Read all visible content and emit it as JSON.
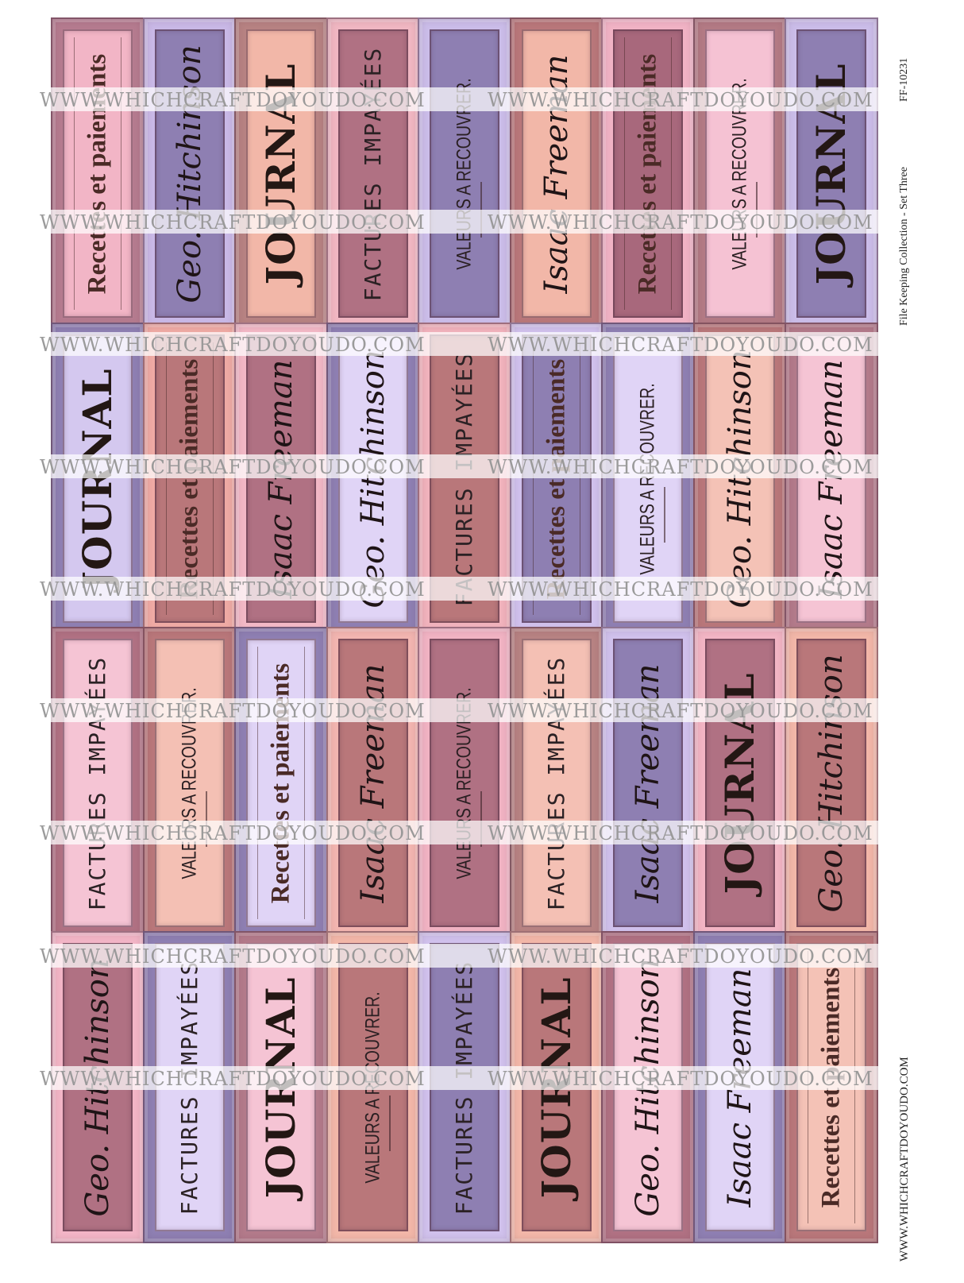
{
  "watermark": "WWW.WHICHCRAFTDOYOUDO.COM",
  "caption": "File Keeping Collection - Set Three",
  "code": "FF-10231",
  "footer_url": "WWW.WHICHCRAFTDOYOUDO.COM",
  "label_texts": {
    "journal": "JOURNAL",
    "factures": "FACTURES IMPAYÉES",
    "valeurs": "VALEURS A RECOUVRER.",
    "recettes": "Recettes et paiements",
    "hitchinson": "Geo. Hitchinson",
    "freeman": "Isaac Freeman"
  },
  "colors": {
    "pink": "#f2b5c6",
    "lilac": "#cbbde9",
    "purple": "#8e7fb2",
    "peach": "#f2b7a8",
    "mauve": "#b07183",
    "rose": "#b9777a",
    "salmon": "#eea9a4",
    "lightpink": "#f5c6d6"
  },
  "bands": [
    {
      "labels": [
        {
          "text": "Recettes et paiements",
          "style": "recettes",
          "outer": "#b57b8f",
          "inner": "#f2b5c6"
        },
        {
          "text": "Geo. Hitchinson",
          "style": "script",
          "outer": "#c9b8e6",
          "inner": "#8e7fb2"
        },
        {
          "text": "JOURNAL",
          "style": "journal",
          "outer": "#b78282",
          "inner": "#f2b7a8"
        },
        {
          "text": "FACTURES IMPAYÉES",
          "style": "factures",
          "outer": "#f0b7c2",
          "inner": "#b07183"
        },
        {
          "text": "VALEURS A RECOUVRER.",
          "style": "valeurs",
          "outer": "#cbbde9",
          "inner": "#8e7fb2"
        },
        {
          "text": "Isaac Freeman",
          "style": "script",
          "outer": "#b9777a",
          "inner": "#f2b7a8"
        },
        {
          "text": "Recettes et paiements",
          "style": "recettes",
          "outer": "#f1b3c5",
          "inner": "#a8687c"
        },
        {
          "text": "VALEURS A RECOUVRER.",
          "style": "valeurs",
          "outer": "#b37a84",
          "inner": "#f5c2d3"
        },
        {
          "text": "JOURNAL",
          "style": "journal",
          "outer": "#cbbde9",
          "inner": "#8e7fb2"
        }
      ]
    },
    {
      "labels": [
        {
          "text": "JOURNAL",
          "style": "journal",
          "outer": "#8e7fb2",
          "inner": "#d4c8ef"
        },
        {
          "text": "Recettes et paiements",
          "style": "recettes",
          "outer": "#efaaa4",
          "inner": "#b9777a"
        },
        {
          "text": "Isaac Freeman",
          "style": "script",
          "outer": "#f2b8c6",
          "inner": "#b07183"
        },
        {
          "text": "Geo. Hitchinson",
          "style": "script",
          "outer": "#8e7fb2",
          "inner": "#e0d4f6"
        },
        {
          "text": "FACTURES IMPAYÉES",
          "style": "factures",
          "outer": "#f1b2bc",
          "inner": "#b9777a"
        },
        {
          "text": "Recettes et paiements",
          "style": "recettes",
          "outer": "#d0c1ec",
          "inner": "#8e7fb2"
        },
        {
          "text": "VALEURS A RECOUVRER.",
          "style": "valeurs",
          "outer": "#8e7fb2",
          "inner": "#e0d4f6"
        },
        {
          "text": "Geo. Hitchinson",
          "style": "script",
          "outer": "#b9777a",
          "inner": "#f4c2b6"
        },
        {
          "text": "Isaac Freeman",
          "style": "script",
          "outer": "#b37a8a",
          "inner": "#f5c4d4"
        }
      ]
    },
    {
      "labels": [
        {
          "text": "FACTURES IMPAYÉES",
          "style": "factures",
          "outer": "#b07183",
          "inner": "#f5c4d4"
        },
        {
          "text": "VALEURS A RECOUVRER.",
          "style": "valeurs",
          "outer": "#b9777a",
          "inner": "#f4c0b4"
        },
        {
          "text": "Recettes et paiements",
          "style": "recettes",
          "outer": "#8e7fb2",
          "inner": "#e0d4f6"
        },
        {
          "text": "Isaac Freeman",
          "style": "script",
          "outer": "#f2b5b0",
          "inner": "#b9777a"
        },
        {
          "text": "VALEURS A RECOUVRER.",
          "style": "valeurs",
          "outer": "#f1b3c3",
          "inner": "#b07183"
        },
        {
          "text": "FACTURES IMPAYÉES",
          "style": "factures",
          "outer": "#b78282",
          "inner": "#f4c0b4"
        },
        {
          "text": "Isaac Freeman",
          "style": "script",
          "outer": "#d0c1ec",
          "inner": "#8e7fb2"
        },
        {
          "text": "JOURNAL",
          "style": "journal",
          "outer": "#f2b5c4",
          "inner": "#b07183"
        },
        {
          "text": "Geo. Hitchinson",
          "style": "script",
          "outer": "#f2b7a8",
          "inner": "#b9777a"
        }
      ]
    },
    {
      "labels": [
        {
          "text": "Geo. Hitchinson",
          "style": "script",
          "outer": "#f2b5c6",
          "inner": "#b07183"
        },
        {
          "text": "FACTURES IMPAYÉES",
          "style": "factures",
          "outer": "#8e7fb2",
          "inner": "#e0d4f6"
        },
        {
          "text": "JOURNAL",
          "style": "journal",
          "outer": "#b37a8a",
          "inner": "#f5c4d4"
        },
        {
          "text": "VALEURS A RECOUVRER.",
          "style": "valeurs",
          "outer": "#f2b7a8",
          "inner": "#b9777a"
        },
        {
          "text": "FACTURES IMPAYÉES",
          "style": "factures",
          "outer": "#d0c1ec",
          "inner": "#8e7fb2"
        },
        {
          "text": "JOURNAL",
          "style": "journal",
          "outer": "#f2b7a8",
          "inner": "#b9777a"
        },
        {
          "text": "Geo. Hitchinson",
          "style": "script",
          "outer": "#b07183",
          "inner": "#f5c4d4"
        },
        {
          "text": "Isaac Freeman",
          "style": "script",
          "outer": "#8e7fb2",
          "inner": "#e0d4f6"
        },
        {
          "text": "Recettes et paiements",
          "style": "recettes",
          "outer": "#b9777a",
          "inner": "#f4c2b6"
        }
      ]
    }
  ]
}
